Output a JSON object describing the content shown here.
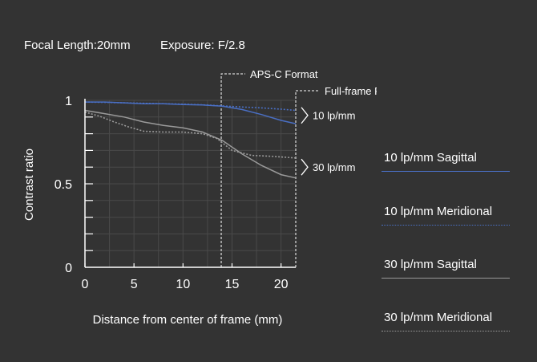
{
  "header": {
    "focal_length": "Focal Length:20mm",
    "exposure": "Exposure: F/2.8"
  },
  "chart_data": {
    "type": "line",
    "title": "",
    "xlabel": "Distance from center of frame (mm)",
    "ylabel": "Contrast ratio",
    "xlim": [
      0,
      21.5
    ],
    "ylim": [
      0,
      1
    ],
    "x_ticks": [
      "0",
      "5",
      "10",
      "15",
      "20"
    ],
    "y_ticks": [
      "0",
      "0.5",
      "1"
    ],
    "grid": true,
    "legend_placement": "right",
    "format_markers": [
      {
        "label": "APS-C Format",
        "x": 13.9
      },
      {
        "label": "Full-frame Format",
        "x": 21.5
      }
    ],
    "frequency_labels": [
      "10 lp/mm",
      "30 lp/mm"
    ],
    "series": [
      {
        "name": "10 lp/mm Sagittal",
        "color": "#4a6fc4",
        "style": "solid",
        "x": [
          0,
          2,
          4,
          6,
          8,
          10,
          12,
          14,
          16,
          18,
          20,
          21.5
        ],
        "y": [
          0.99,
          0.99,
          0.985,
          0.98,
          0.98,
          0.975,
          0.972,
          0.965,
          0.945,
          0.915,
          0.88,
          0.86
        ]
      },
      {
        "name": "10 lp/mm Meridional",
        "color": "#4a6fc4",
        "style": "dotted",
        "x": [
          0,
          2,
          4,
          6,
          8,
          10,
          12,
          14,
          16,
          18,
          20,
          21.5
        ],
        "y": [
          0.99,
          0.988,
          0.985,
          0.982,
          0.98,
          0.977,
          0.973,
          0.967,
          0.96,
          0.955,
          0.947,
          0.94
        ]
      },
      {
        "name": "30 lp/mm Sagittal",
        "color": "#9a9a9a",
        "style": "solid",
        "x": [
          0,
          2,
          4,
          6,
          8,
          10,
          12,
          14,
          16,
          18,
          20,
          21.5
        ],
        "y": [
          0.94,
          0.92,
          0.9,
          0.87,
          0.85,
          0.835,
          0.81,
          0.76,
          0.68,
          0.61,
          0.555,
          0.535
        ]
      },
      {
        "name": "30 lp/mm Meridional",
        "color": "#9a9a9a",
        "style": "dotted",
        "x": [
          0,
          1.5,
          3,
          4.5,
          6,
          8,
          10,
          12,
          13.5,
          15,
          17,
          19,
          21.5
        ],
        "y": [
          0.93,
          0.905,
          0.87,
          0.84,
          0.815,
          0.81,
          0.81,
          0.8,
          0.77,
          0.7,
          0.67,
          0.665,
          0.655
        ]
      }
    ]
  }
}
